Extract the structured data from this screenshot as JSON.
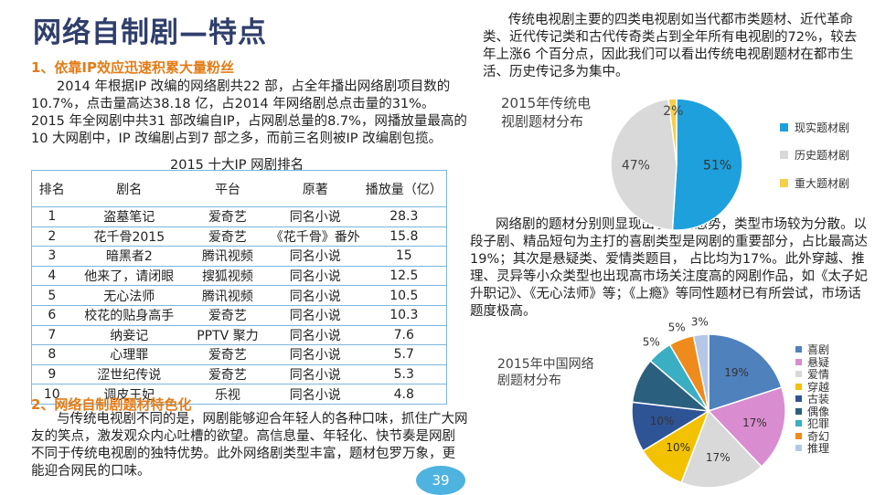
{
  "slide_title": "网络自制剧—特点",
  "section1": {
    "heading": "1、依靠IP效应迅速积累大量粉丝",
    "paragraph": "2014 年根据IP 改编的网络剧共22 部，占全年播出网络剧项目数的10.7%，点击量高达38.18 亿，占2014 年网络剧总点击量的31%。2015 年全网剧中共31 部改编自IP，占网剧总量的8.7%，网播放量最高的10 大网剧中，IP 改编剧占到7 部之多，而前三名则被IP 改编剧包揽。"
  },
  "table": {
    "caption": "2015 十大IP 网剧排名",
    "headers": [
      "排名",
      "剧名",
      "平台",
      "原著",
      "播放量（亿）"
    ],
    "rows": [
      [
        "1",
        "盗墓笔记",
        "爱奇艺",
        "同名小说",
        "28.3"
      ],
      [
        "2",
        "花千骨2015",
        "爱奇艺",
        "《花千骨》番外",
        "15.8"
      ],
      [
        "3",
        "暗黑者2",
        "腾讯视频",
        "同名小说",
        "15"
      ],
      [
        "4",
        "他来了，请闭眼",
        "搜狐视频",
        "同名小说",
        "12.5"
      ],
      [
        "5",
        "无心法师",
        "腾讯视频",
        "同名小说",
        "10.5"
      ],
      [
        "6",
        "校花的贴身高手",
        "爱奇艺",
        "同名小说",
        "10.3"
      ],
      [
        "7",
        "纳妾记",
        "PPTV 聚力",
        "同名小说",
        "7.6"
      ],
      [
        "8",
        "心理罪",
        "爱奇艺",
        "同名小说",
        "5.7"
      ],
      [
        "9",
        "涩世纪传说",
        "爱奇艺",
        "同名小说",
        "5.3"
      ],
      [
        "10",
        "调皮王妃",
        "乐视",
        "同名小说",
        "4.8"
      ]
    ]
  },
  "section2": {
    "heading": "2、网络自制剧题材特色化",
    "paragraph": "与传统电视剧不同的是，网剧能够迎合年轻人的各种口味，抓住广大网友的笑点，激发观众内心吐槽的欲望。高信息量、年轻化、快节奏是网剧不同于传统电视剧的独特优势。此外网络剧类型丰富，题材包罗万象，更能迎合网民的口味。"
  },
  "right_top_paragraph": "传统电视剧主要的四类电视剧如当代都市类题材、近代革命类、近代传记类和古代传奇类占到全年所有电视剧的72%，较去年上涨6 个百分点，因此我们可以看出传统电视剧题材在都市生活、历史传记多为集中。",
  "right_mid_paragraph": "网络剧的题材分别则显现出了丰富态势，类型市场较为分散。以段子剧、精品短句为主打的喜剧类型是网剧的重要部分，占比最高达19%；其次是悬疑类、爱情类题目， 占比均为17%。此外穿越、推理、灵异等小众类型也出现高市场关注度高的网剧作品，如《太子妃升职记》、《无心法师》等；《上瘾》等同性题材已有所尝试，市场话题度极高。",
  "page_number": "39",
  "chart_data": [
    {
      "type": "pie",
      "title": "2015年传统电视剧题材分布",
      "categories": [
        "现实题材剧",
        "历史题材剧",
        "重大题材剧"
      ],
      "values": [
        51,
        47,
        2
      ],
      "value_labels": [
        "51%",
        "47%",
        "2%"
      ],
      "colors": [
        "#1ea0dc",
        "#d9d9d9",
        "#f6cf4a"
      ],
      "legend": "right"
    },
    {
      "type": "pie",
      "title": "2015年中国网络剧题材分布",
      "categories": [
        "喜剧",
        "悬疑",
        "爱情",
        "穿越",
        "古装",
        "偶像",
        "犯罪",
        "奇幻",
        "推理"
      ],
      "values": [
        19,
        17,
        17,
        10,
        10,
        9,
        5,
        5,
        3
      ],
      "value_labels": [
        "19%",
        "17%",
        "17%",
        "10%",
        "10%",
        "",
        "5%",
        "5%",
        "3%"
      ],
      "colors": [
        "#4f81bd",
        "#d98ccf",
        "#d9d9d9",
        "#f2c200",
        "#2f5496",
        "#2b5f7e",
        "#3aaec2",
        "#ef8a1c",
        "#b4c7e7"
      ],
      "legend": "right"
    }
  ]
}
